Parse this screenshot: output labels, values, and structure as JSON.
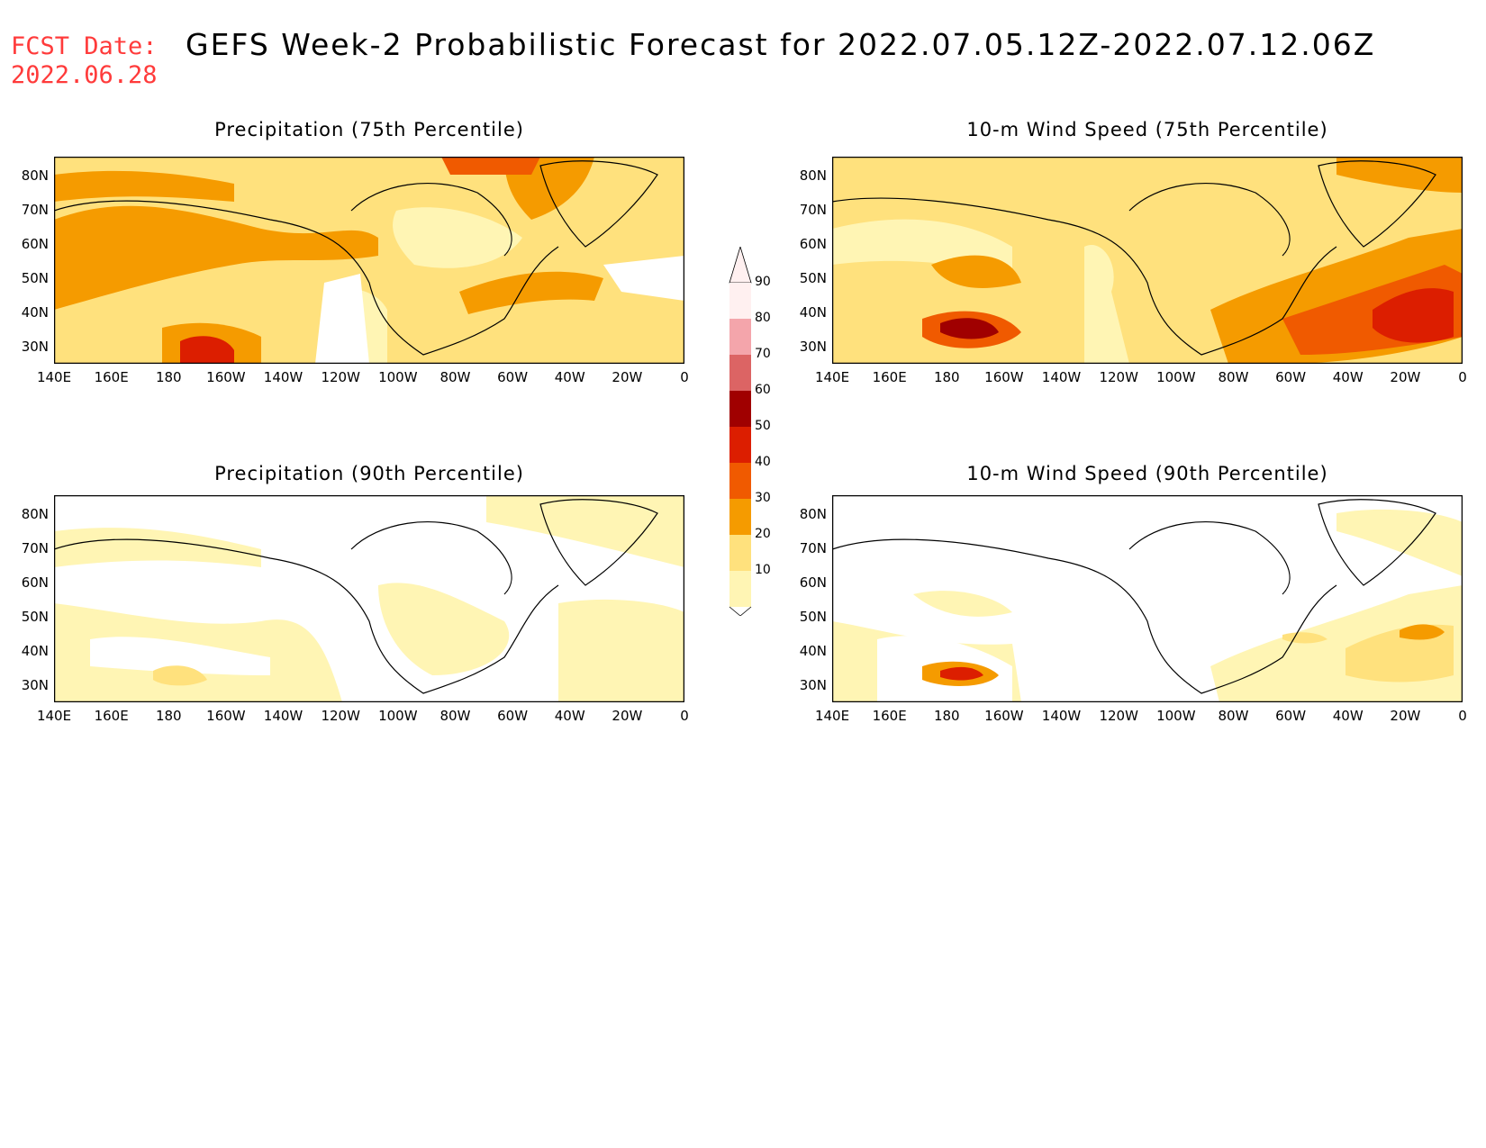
{
  "header": {
    "fcst_label": "FCST Date:",
    "fcst_date": "2022.06.28",
    "title": "GEFS Week-2 Probabilistic Forecast for 2022.07.05.12Z-2022.07.12.06Z"
  },
  "x_ticks": [
    "140E",
    "160E",
    "180",
    "160W",
    "140W",
    "120W",
    "100W",
    "80W",
    "60W",
    "40W",
    "20W",
    "0"
  ],
  "y_ticks": [
    "80N",
    "70N",
    "60N",
    "50N",
    "40N",
    "30N"
  ],
  "panels": [
    {
      "title": "Precipitation (75th Percentile)"
    },
    {
      "title": "10-m Wind Speed (75th Percentile)"
    },
    {
      "title": "Precipitation (90th Percentile)"
    },
    {
      "title": "10-m Wind Speed (90th Percentile)"
    }
  ],
  "colorbar": {
    "labels": [
      "90",
      "80",
      "70",
      "60",
      "50",
      "40",
      "30",
      "20",
      "10"
    ],
    "colors": [
      "#fff0f0",
      "#f4a5ab",
      "#dc6464",
      "#a00000",
      "#dc1e00",
      "#f05a00",
      "#f59b00",
      "#ffe17d",
      "#fff5b4"
    ]
  }
}
